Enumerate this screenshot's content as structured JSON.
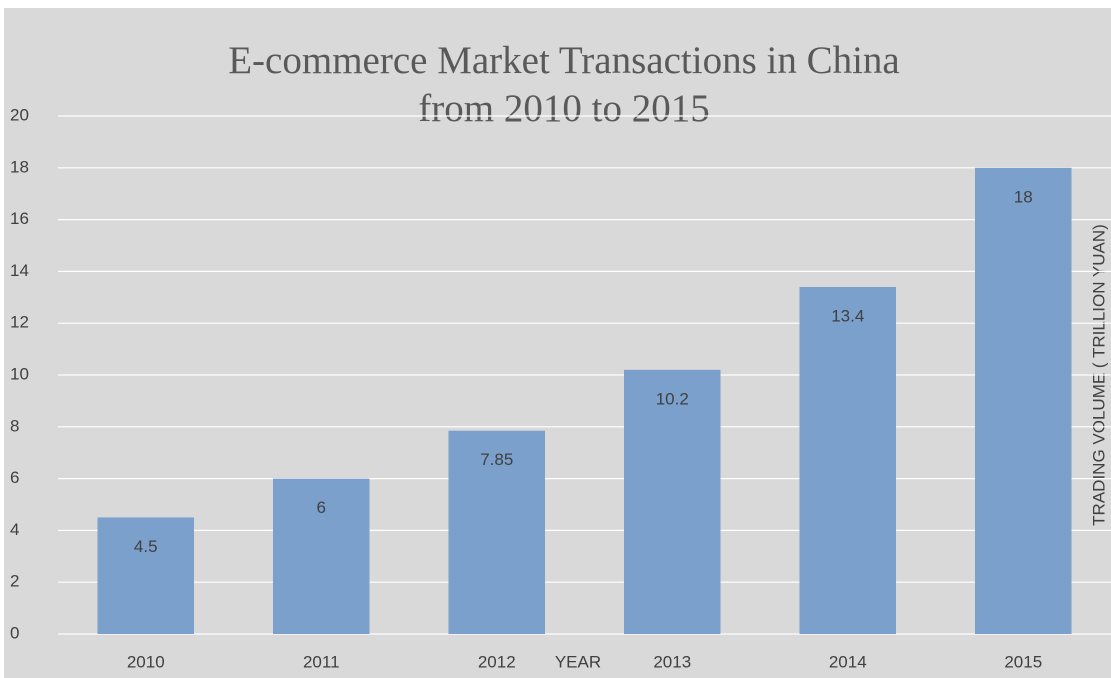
{
  "chart_data": {
    "type": "bar",
    "title": [
      "E-commerce Market Transactions in China",
      "from 2010 to 2015"
    ],
    "x_label": "YEAR",
    "y_label": "TRADING VOLUME ( TRILLION YUAN)",
    "categories": [
      "2010",
      "2011",
      "2012",
      "2013",
      "2014",
      "2015"
    ],
    "values": [
      4.5,
      6,
      7.85,
      10.2,
      13.4,
      18
    ],
    "color": "#7ba0cc",
    "ylim": [
      0,
      20
    ],
    "yticks": [
      0,
      2,
      4,
      6,
      8,
      10,
      12,
      14,
      16,
      18,
      20
    ],
    "grid": true
  }
}
